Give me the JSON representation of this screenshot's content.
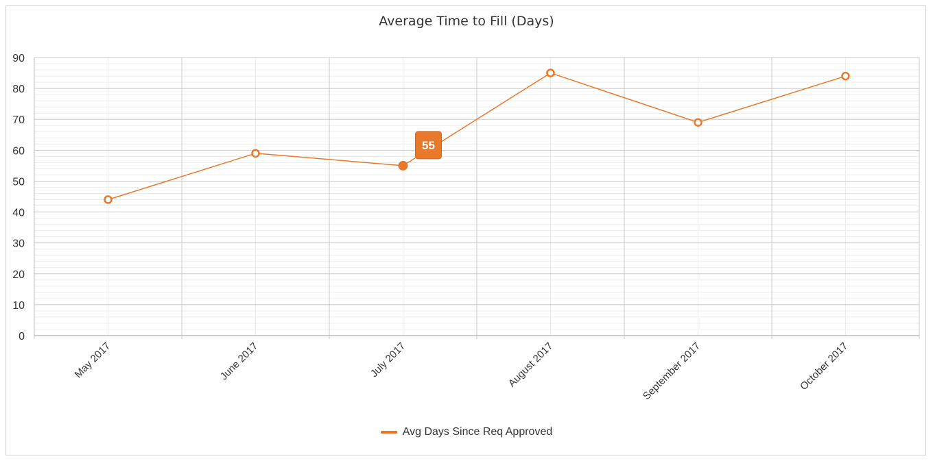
{
  "colors": {
    "series": "#e8782a",
    "tooltip_bg": "#e8782a",
    "grid_major": "#c8c8c8",
    "grid_minor": "#ececec",
    "text": "#333333"
  },
  "chart_data": {
    "type": "line",
    "title": "Average Time to Fill (Days)",
    "xlabel": "",
    "ylabel": "",
    "categories": [
      "May 2017",
      "June 2017",
      "July 2017",
      "August 2017",
      "September 2017",
      "October 2017"
    ],
    "series": [
      {
        "name": "Avg Days Since Req Approved",
        "values": [
          44,
          59,
          55,
          85,
          69,
          84
        ]
      }
    ],
    "ylim": [
      0,
      90
    ],
    "yticks": [
      "0",
      "10",
      "20",
      "30",
      "40",
      "50",
      "60",
      "70",
      "80",
      "90"
    ],
    "grid": true,
    "legend": "bottom-center",
    "highlighted": {
      "category": "July 2017",
      "value": "55"
    }
  }
}
